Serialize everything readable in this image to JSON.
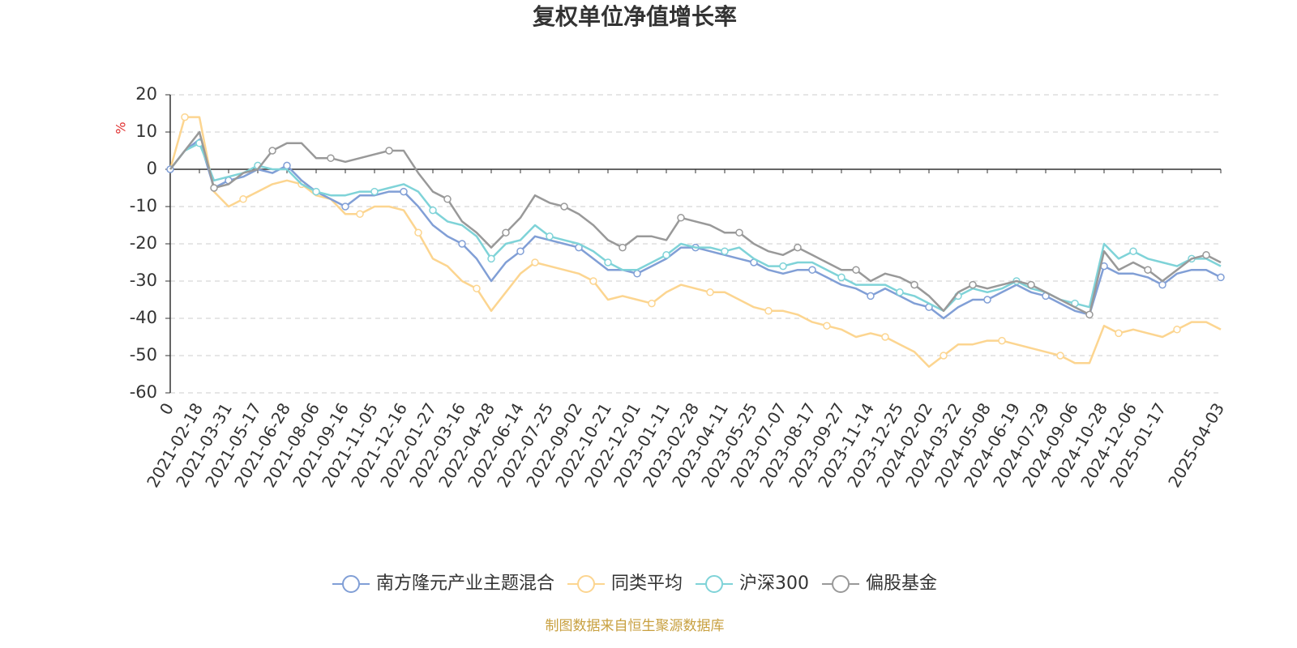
{
  "chart_data": {
    "type": "line",
    "title": "复权单位净值增长率",
    "y_label": "%",
    "source": "制图数据来自恒生聚源数据库",
    "categories": [
      "0",
      null,
      "2021-02-18",
      null,
      "2021-03-31",
      null,
      "2021-05-17",
      null,
      "2021-06-28",
      null,
      "2021-08-06",
      null,
      "2021-09-16",
      null,
      "2021-11-05",
      null,
      "2021-12-16",
      null,
      "2022-01-27",
      null,
      "2022-03-16",
      null,
      "2022-04-28",
      null,
      "2022-06-14",
      null,
      "2022-07-25",
      null,
      "2022-09-02",
      null,
      "2022-10-21",
      null,
      "2022-12-01",
      null,
      "2023-01-11",
      null,
      "2023-02-28",
      null,
      "2023-04-11",
      null,
      "2023-05-25",
      null,
      "2023-07-07",
      null,
      "2023-08-17",
      null,
      "2023-09-27",
      null,
      "2023-11-14",
      null,
      "2023-12-25",
      null,
      "2024-02-02",
      null,
      "2024-03-22",
      null,
      "2024-05-08",
      null,
      "2024-06-19",
      null,
      "2024-07-29",
      null,
      "2024-09-06",
      null,
      "2024-10-28",
      null,
      "2024-12-06",
      null,
      "2025-01-17",
      null,
      null,
      null,
      "2025-04-03"
    ],
    "series": [
      {
        "name": "南方隆元产业主题混合",
        "color": "#819fd6",
        "values": [
          0,
          5,
          8,
          -5,
          -3,
          -2,
          0,
          -1,
          1,
          -3,
          -6,
          -8,
          -10,
          -7,
          -7,
          -6,
          -6,
          -10,
          -15,
          -18,
          -20,
          -24,
          -30,
          -25,
          -22,
          -18,
          -19,
          -20,
          -21,
          -24,
          -27,
          -27,
          -28,
          -26,
          -24,
          -21,
          -21,
          -22,
          -23,
          -24,
          -25,
          -27,
          -28,
          -27,
          -27,
          -29,
          -31,
          -32,
          -34,
          -32,
          -34,
          -36,
          -37,
          -40,
          -37,
          -35,
          -35,
          -33,
          -31,
          -33,
          -34,
          -36,
          -38,
          -39,
          -26,
          -28,
          -28,
          -29,
          -31,
          -28,
          -27,
          -27,
          -29
        ]
      },
      {
        "name": "同类平均",
        "color": "#fcd590",
        "values": [
          0,
          14,
          14,
          -6,
          -10,
          -8,
          -6,
          -4,
          -3,
          -4,
          -7,
          -8,
          -12,
          -12,
          -10,
          -10,
          -11,
          -17,
          -24,
          -26,
          -30,
          -32,
          -38,
          -33,
          -28,
          -25,
          -26,
          -27,
          -28,
          -30,
          -35,
          -34,
          -35,
          -36,
          -33,
          -31,
          -32,
          -33,
          -33,
          -35,
          -37,
          -38,
          -38,
          -39,
          -41,
          -42,
          -43,
          -45,
          -44,
          -45,
          -47,
          -49,
          -53,
          -50,
          -47,
          -47,
          -46,
          -46,
          -47,
          -48,
          -49,
          -50,
          -52,
          -52,
          -42,
          -44,
          -43,
          -44,
          -45,
          -43,
          -41,
          -41,
          -43
        ]
      },
      {
        "name": "沪深300",
        "color": "#7fd3d8",
        "values": [
          0,
          5,
          7,
          -3,
          -2,
          -1,
          1,
          0,
          0,
          -4,
          -6,
          -7,
          -7,
          -6,
          -6,
          -5,
          -4,
          -6,
          -11,
          -14,
          -15,
          -18,
          -24,
          -20,
          -19,
          -15,
          -18,
          -19,
          -20,
          -22,
          -25,
          -27,
          -27,
          -25,
          -23,
          -20,
          -21,
          -21,
          -22,
          -21,
          -24,
          -26,
          -26,
          -25,
          -25,
          -27,
          -29,
          -31,
          -31,
          -31,
          -33,
          -34,
          -36,
          -38,
          -34,
          -32,
          -33,
          -32,
          -30,
          -32,
          -33,
          -35,
          -36,
          -37,
          -20,
          -24,
          -22,
          -24,
          -25,
          -26,
          -24,
          -24,
          -26
        ]
      },
      {
        "name": "偏股基金",
        "color": "#999999",
        "values": [
          0,
          5,
          10,
          -5,
          -4,
          -1,
          0,
          5,
          7,
          7,
          3,
          3,
          2,
          3,
          4,
          5,
          5,
          -1,
          -6,
          -8,
          -14,
          -17,
          -21,
          -17,
          -13,
          -7,
          -9,
          -10,
          -12,
          -15,
          -19,
          -21,
          -18,
          -18,
          -19,
          -13,
          -14,
          -15,
          -17,
          -17,
          -20,
          -22,
          -23,
          -21,
          -23,
          -25,
          -27,
          -27,
          -30,
          -28,
          -29,
          -31,
          -34,
          -38,
          -33,
          -31,
          -32,
          -31,
          -30,
          -31,
          -33,
          -35,
          -37,
          -39,
          -22,
          -27,
          -25,
          -27,
          -30,
          -27,
          -24,
          -23,
          -25
        ]
      }
    ],
    "ylim": [
      -60,
      20
    ],
    "yticks": [
      -60,
      -50,
      -40,
      -30,
      -20,
      -10,
      0,
      10,
      20
    ],
    "grid": true,
    "legend": "bottom"
  }
}
